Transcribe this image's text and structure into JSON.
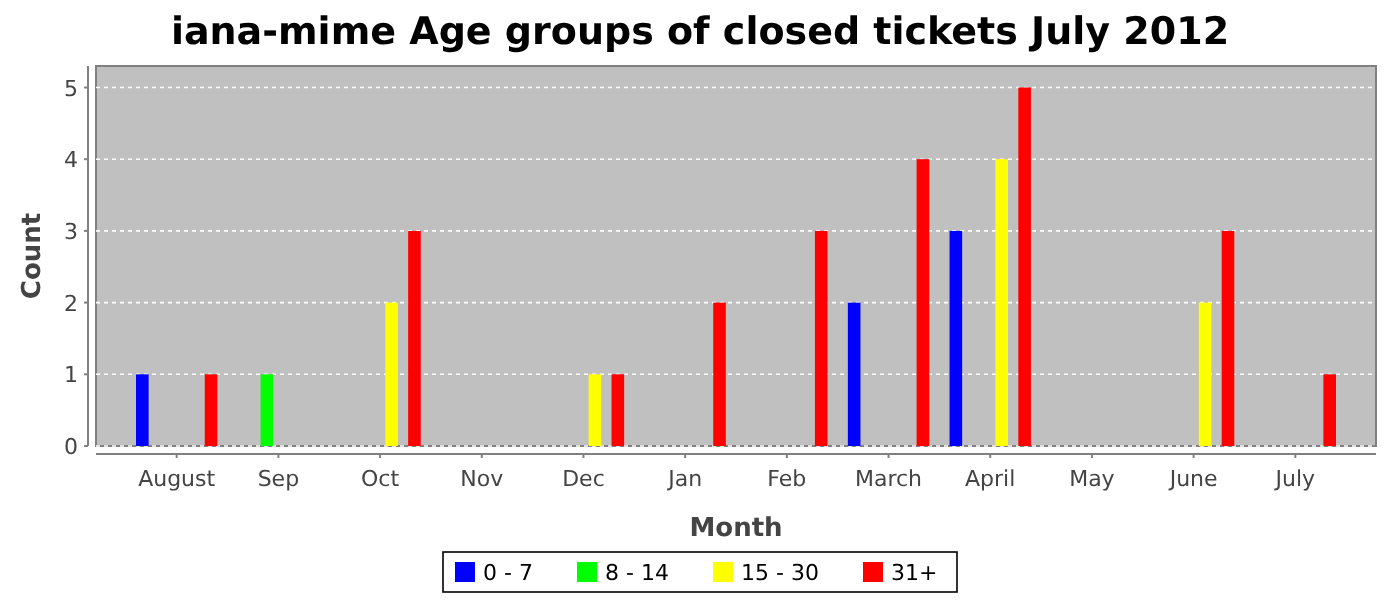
{
  "chart_data": {
    "type": "bar",
    "title": "iana-mime Age groups of closed tickets July 2012",
    "xlabel": "Month",
    "ylabel": "Count",
    "categories": [
      "August",
      "Sep",
      "Oct",
      "Nov",
      "Dec",
      "Jan",
      "Feb",
      "March",
      "April",
      "May",
      "June",
      "July"
    ],
    "series": [
      {
        "name": "0 - 7",
        "color": "#0000ff",
        "values": [
          1,
          0,
          0,
          0,
          0,
          0,
          0,
          2,
          3,
          0,
          0,
          0
        ]
      },
      {
        "name": "8 - 14",
        "color": "#00ff00",
        "values": [
          0,
          1,
          0,
          0,
          0,
          0,
          0,
          0,
          0,
          0,
          0,
          0
        ]
      },
      {
        "name": "15 - 30",
        "color": "#ffff00",
        "values": [
          0,
          0,
          2,
          0,
          1,
          0,
          0,
          0,
          4,
          0,
          2,
          0
        ]
      },
      {
        "name": "31+",
        "color": "#ff0000",
        "values": [
          1,
          0,
          3,
          0,
          1,
          2,
          3,
          4,
          5,
          0,
          3,
          1
        ]
      }
    ],
    "ylim": [
      0,
      5.3
    ],
    "yticks": [
      0,
      1,
      2,
      3,
      4,
      5
    ],
    "grid": "y",
    "legend": "bottom"
  }
}
